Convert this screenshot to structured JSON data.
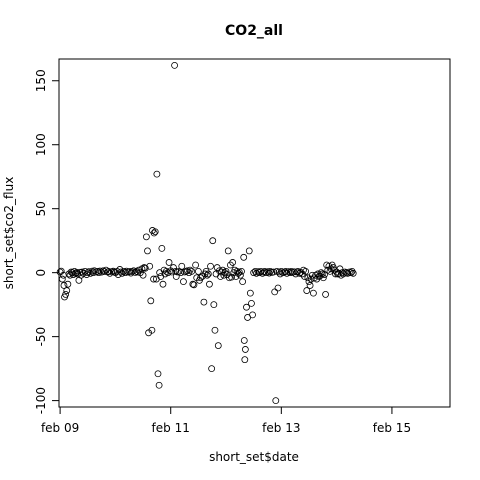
{
  "chart_data": {
    "type": "scatter",
    "title": "CO2_all",
    "xlabel": "short_set$date",
    "ylabel": "short_set$co2_flux",
    "x_unit": "day of February",
    "xlim": [
      8.98,
      16.05
    ],
    "ylim": [
      -105,
      167
    ],
    "x_ticks": [
      {
        "value": 9,
        "label": "feb 09"
      },
      {
        "value": 11,
        "label": "feb 11"
      },
      {
        "value": 13,
        "label": "feb 13"
      },
      {
        "value": 15,
        "label": "feb 15"
      }
    ],
    "y_ticks": [
      -100,
      -50,
      0,
      50,
      100,
      150
    ],
    "grid": false,
    "legend": "none",
    "marker": "open-circle",
    "color": "#000000",
    "points": [
      [
        9.0,
        0.5
      ],
      [
        9.02,
        1.2
      ],
      [
        9.04,
        -5.0
      ],
      [
        9.06,
        -2.0
      ],
      [
        9.07,
        -10.0
      ],
      [
        9.08,
        -19.0
      ],
      [
        9.1,
        -17.0
      ],
      [
        9.12,
        -14.0
      ],
      [
        9.14,
        -9.0
      ],
      [
        9.16,
        -1.0
      ],
      [
        9.18,
        -2.0
      ],
      [
        9.2,
        0.5
      ],
      [
        9.22,
        0.0
      ],
      [
        9.24,
        -1.5
      ],
      [
        9.26,
        1.0
      ],
      [
        9.28,
        -0.5
      ],
      [
        9.3,
        0.2
      ],
      [
        9.32,
        -1.0
      ],
      [
        9.34,
        -6.0
      ],
      [
        9.36,
        0.3
      ],
      [
        9.38,
        -2.0
      ],
      [
        9.4,
        0.5
      ],
      [
        9.42,
        -0.5
      ],
      [
        9.45,
        1.0
      ],
      [
        9.48,
        -1.5
      ],
      [
        9.5,
        0.0
      ],
      [
        9.52,
        0.8
      ],
      [
        9.55,
        -0.5
      ],
      [
        9.58,
        1.2
      ],
      [
        9.6,
        0.0
      ],
      [
        9.62,
        1.5
      ],
      [
        9.65,
        0.5
      ],
      [
        9.68,
        1.0
      ],
      [
        9.7,
        0.0
      ],
      [
        9.72,
        1.3
      ],
      [
        9.75,
        0.4
      ],
      [
        9.78,
        1.5
      ],
      [
        9.8,
        0.8
      ],
      [
        9.83,
        2.0
      ],
      [
        9.86,
        0.5
      ],
      [
        9.88,
        1.0
      ],
      [
        9.9,
        -0.5
      ],
      [
        9.93,
        0.7
      ],
      [
        9.96,
        1.2
      ],
      [
        9.98,
        0.5
      ],
      [
        10.0,
        0.0
      ],
      [
        10.03,
        1.0
      ],
      [
        10.05,
        -1.5
      ],
      [
        10.08,
        2.5
      ],
      [
        10.1,
        0.5
      ],
      [
        10.12,
        -0.5
      ],
      [
        10.15,
        1.0
      ],
      [
        10.18,
        0.0
      ],
      [
        10.2,
        1.2
      ],
      [
        10.23,
        0.5
      ],
      [
        10.26,
        1.0
      ],
      [
        10.28,
        -0.3
      ],
      [
        10.3,
        0.8
      ],
      [
        10.33,
        1.5
      ],
      [
        10.36,
        0.2
      ],
      [
        10.38,
        1.0
      ],
      [
        10.4,
        0.5
      ],
      [
        10.42,
        2.0
      ],
      [
        10.45,
        0.0
      ],
      [
        10.48,
        3.0
      ],
      [
        10.5,
        -2.0
      ],
      [
        10.52,
        4.0
      ],
      [
        10.54,
        3.5
      ],
      [
        10.56,
        28.0
      ],
      [
        10.58,
        17.0
      ],
      [
        10.6,
        -47.0
      ],
      [
        10.62,
        5.0
      ],
      [
        10.64,
        -22.0
      ],
      [
        10.66,
        -45.0
      ],
      [
        10.67,
        33.0
      ],
      [
        10.69,
        -5.0
      ],
      [
        10.7,
        31.0
      ],
      [
        10.72,
        32.0
      ],
      [
        10.74,
        -5.0
      ],
      [
        10.75,
        77.0
      ],
      [
        10.77,
        -79.0
      ],
      [
        10.79,
        -88.0
      ],
      [
        10.8,
        0.0
      ],
      [
        10.82,
        -3.0
      ],
      [
        10.84,
        19.0
      ],
      [
        10.86,
        -9.0
      ],
      [
        10.88,
        2.0
      ],
      [
        10.9,
        -1.0
      ],
      [
        10.92,
        1.0
      ],
      [
        10.95,
        0.0
      ],
      [
        10.97,
        8.0
      ],
      [
        11.0,
        1.5
      ],
      [
        11.02,
        0.5
      ],
      [
        11.05,
        4.0
      ],
      [
        11.07,
        162.0
      ],
      [
        11.09,
        1.0
      ],
      [
        11.1,
        -3.0
      ],
      [
        11.12,
        0.5
      ],
      [
        11.15,
        1.0
      ],
      [
        11.18,
        0.0
      ],
      [
        11.2,
        5.0
      ],
      [
        11.23,
        -7.0
      ],
      [
        11.25,
        0.5
      ],
      [
        11.28,
        1.0
      ],
      [
        11.3,
        1.5
      ],
      [
        11.33,
        0.0
      ],
      [
        11.35,
        2.0
      ],
      [
        11.38,
        1.0
      ],
      [
        11.4,
        -9.0
      ],
      [
        11.42,
        -9.5
      ],
      [
        11.45,
        6.0
      ],
      [
        11.47,
        -4.0
      ],
      [
        11.5,
        1.0
      ],
      [
        11.52,
        -6.0
      ],
      [
        11.54,
        -4.0
      ],
      [
        11.57,
        -3.0
      ],
      [
        11.6,
        -23.0
      ],
      [
        11.62,
        -1.0
      ],
      [
        11.64,
        1.0
      ],
      [
        11.66,
        -2.0
      ],
      [
        11.68,
        -1.0
      ],
      [
        11.7,
        -9.0
      ],
      [
        11.72,
        5.0
      ],
      [
        11.74,
        -75.0
      ],
      [
        11.76,
        25.0
      ],
      [
        11.78,
        -25.0
      ],
      [
        11.8,
        -45.0
      ],
      [
        11.82,
        -1.0
      ],
      [
        11.84,
        4.0
      ],
      [
        11.86,
        -57.0
      ],
      [
        11.88,
        1.5
      ],
      [
        11.9,
        -3.0
      ],
      [
        11.92,
        0.5
      ],
      [
        11.94,
        2.0
      ],
      [
        11.96,
        -2.0
      ],
      [
        11.98,
        0.0
      ],
      [
        12.0,
        1.0
      ],
      [
        12.02,
        -1.5
      ],
      [
        12.04,
        17.0
      ],
      [
        12.06,
        -4.0
      ],
      [
        12.08,
        6.0
      ],
      [
        12.1,
        -3.5
      ],
      [
        12.12,
        8.0
      ],
      [
        12.14,
        0.0
      ],
      [
        12.16,
        2.0
      ],
      [
        12.18,
        -3.0
      ],
      [
        12.2,
        1.0
      ],
      [
        12.22,
        -0.5
      ],
      [
        12.24,
        0.5
      ],
      [
        12.26,
        -2.0
      ],
      [
        12.28,
        1.0
      ],
      [
        12.3,
        -7.0
      ],
      [
        12.32,
        12.0
      ],
      [
        12.33,
        -53.0
      ],
      [
        12.34,
        -68.0
      ],
      [
        12.35,
        -60.0
      ],
      [
        12.37,
        -27.0
      ],
      [
        12.39,
        -35.0
      ],
      [
        12.42,
        17.0
      ],
      [
        12.44,
        -16.0
      ],
      [
        12.46,
        -24.0
      ],
      [
        12.48,
        -33.0
      ],
      [
        12.5,
        0.0
      ],
      [
        12.53,
        1.0
      ],
      [
        12.55,
        -0.5
      ],
      [
        12.58,
        0.8
      ],
      [
        12.6,
        0.0
      ],
      [
        12.63,
        1.0
      ],
      [
        12.66,
        -0.5
      ],
      [
        12.68,
        0.5
      ],
      [
        12.7,
        1.0
      ],
      [
        12.73,
        0.0
      ],
      [
        12.76,
        0.8
      ],
      [
        12.78,
        -0.3
      ],
      [
        12.8,
        1.0
      ],
      [
        12.83,
        0.2
      ],
      [
        12.86,
        0.5
      ],
      [
        12.88,
        -15.0
      ],
      [
        12.9,
        -100.0
      ],
      [
        12.92,
        1.0
      ],
      [
        12.94,
        -12.0
      ],
      [
        12.96,
        0.5
      ],
      [
        12.98,
        -1.0
      ],
      [
        13.0,
        1.0
      ],
      [
        13.03,
        0.0
      ],
      [
        13.06,
        0.5
      ],
      [
        13.08,
        1.0
      ],
      [
        13.1,
        -0.5
      ],
      [
        13.13,
        0.8
      ],
      [
        13.16,
        0.0
      ],
      [
        13.18,
        1.0
      ],
      [
        13.2,
        0.2
      ],
      [
        13.23,
        0.7
      ],
      [
        13.26,
        -1.0
      ],
      [
        13.28,
        0.5
      ],
      [
        13.3,
        1.0
      ],
      [
        13.33,
        -0.5
      ],
      [
        13.35,
        0.3
      ],
      [
        13.38,
        -1.0
      ],
      [
        13.4,
        2.0
      ],
      [
        13.42,
        -3.0
      ],
      [
        13.44,
        1.0
      ],
      [
        13.46,
        -14.0
      ],
      [
        13.48,
        -4.0
      ],
      [
        13.5,
        -7.0
      ],
      [
        13.52,
        -10.0
      ],
      [
        13.54,
        -5.0
      ],
      [
        13.56,
        -2.0
      ],
      [
        13.58,
        -16.0
      ],
      [
        13.6,
        -4.0
      ],
      [
        13.62,
        -2.0
      ],
      [
        13.64,
        -5.0
      ],
      [
        13.66,
        -1.0
      ],
      [
        13.68,
        -3.0
      ],
      [
        13.7,
        -2.5
      ],
      [
        13.72,
        0.0
      ],
      [
        13.74,
        -1.0
      ],
      [
        13.76,
        -4.0
      ],
      [
        13.78,
        -1.5
      ],
      [
        13.8,
        -17.0
      ],
      [
        13.82,
        6.0
      ],
      [
        13.84,
        2.0
      ],
      [
        13.86,
        5.0
      ],
      [
        13.88,
        1.0
      ],
      [
        13.9,
        3.0
      ],
      [
        13.92,
        6.0
      ],
      [
        13.94,
        4.0
      ],
      [
        13.96,
        2.0
      ],
      [
        13.98,
        -1.0
      ],
      [
        14.0,
        0.5
      ],
      [
        14.02,
        -1.0
      ],
      [
        14.04,
        -0.5
      ],
      [
        14.06,
        3.0
      ],
      [
        14.08,
        -2.0
      ],
      [
        14.1,
        0.0
      ],
      [
        14.12,
        -1.0
      ],
      [
        14.15,
        0.5
      ],
      [
        14.18,
        0.0
      ],
      [
        14.2,
        -0.5
      ],
      [
        14.23,
        0.5
      ],
      [
        14.26,
        0.0
      ],
      [
        14.28,
        1.0
      ],
      [
        14.3,
        -0.5
      ]
    ]
  }
}
